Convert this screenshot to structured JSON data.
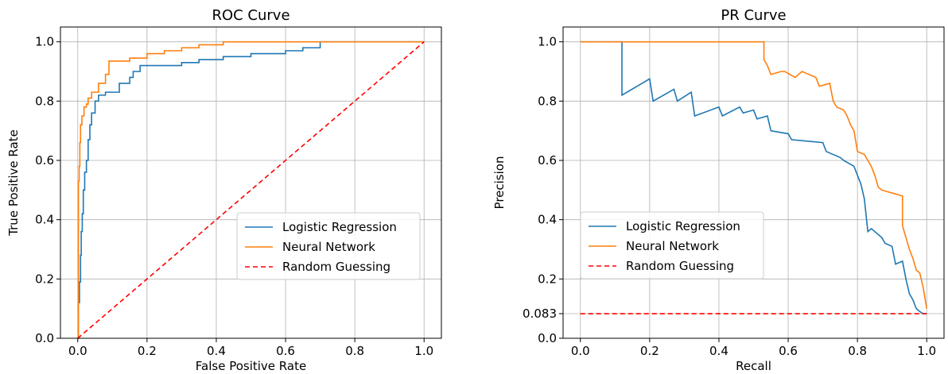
{
  "colors": {
    "lr": "#1f77b4",
    "nn": "#ff7f0e",
    "random": "#ff0000"
  },
  "chart_data": [
    {
      "type": "line",
      "title": "ROC Curve",
      "xlabel": "False Positive Rate",
      "ylabel": "True Positive Rate",
      "xlim": [
        -0.05,
        1.05
      ],
      "ylim": [
        0.0,
        1.05
      ],
      "xticks": [
        "0.0",
        "0.2",
        "0.4",
        "0.6",
        "0.8",
        "1.0"
      ],
      "yticks": [
        "0.0",
        "0.2",
        "0.4",
        "0.6",
        "0.8",
        "1.0"
      ],
      "grid": true,
      "legend_position": "lower-right",
      "series": [
        {
          "name": "Logistic Regression",
          "color_key": "lr",
          "step": true,
          "x": [
            0,
            0.002,
            0.005,
            0.008,
            0.01,
            0.013,
            0.016,
            0.02,
            0.025,
            0.03,
            0.035,
            0.04,
            0.05,
            0.06,
            0.08,
            0.12,
            0.15,
            0.16,
            0.18,
            0.2,
            0.3,
            0.35,
            0.42,
            0.5,
            0.6,
            0.65,
            0.7,
            1.0
          ],
          "y": [
            0,
            0.12,
            0.19,
            0.28,
            0.36,
            0.42,
            0.5,
            0.56,
            0.6,
            0.67,
            0.72,
            0.76,
            0.8,
            0.82,
            0.83,
            0.86,
            0.88,
            0.9,
            0.92,
            0.92,
            0.93,
            0.94,
            0.95,
            0.96,
            0.97,
            0.98,
            1.0,
            1.0
          ]
        },
        {
          "name": "Neural Network",
          "color_key": "nn",
          "step": true,
          "x": [
            0,
            0.002,
            0.004,
            0.006,
            0.008,
            0.012,
            0.018,
            0.025,
            0.03,
            0.04,
            0.06,
            0.08,
            0.09,
            0.15,
            0.2,
            0.25,
            0.3,
            0.35,
            0.42,
            1.0
          ],
          "y": [
            0,
            0.53,
            0.58,
            0.66,
            0.72,
            0.75,
            0.78,
            0.79,
            0.81,
            0.83,
            0.86,
            0.89,
            0.935,
            0.945,
            0.96,
            0.97,
            0.98,
            0.99,
            1.0,
            1.0
          ]
        },
        {
          "name": "Random Guessing",
          "color_key": "random",
          "dashed": true,
          "x": [
            0,
            1
          ],
          "y": [
            0,
            1
          ]
        }
      ]
    },
    {
      "type": "line",
      "title": "PR Curve",
      "xlabel": "Recall",
      "ylabel": "Precision",
      "xlim": [
        -0.05,
        1.05
      ],
      "ylim": [
        0.0,
        1.05
      ],
      "xticks": [
        "0.0",
        "0.2",
        "0.4",
        "0.6",
        "0.8",
        "1.0"
      ],
      "yticks": [
        "0.0",
        "0.083",
        "0.2",
        "0.4",
        "0.6",
        "0.8",
        "1.0"
      ],
      "ytick_values": [
        0.0,
        0.083,
        0.2,
        0.4,
        0.6,
        0.8,
        1.0
      ],
      "grid": true,
      "legend_position": "center-left",
      "series": [
        {
          "name": "Logistic Regression",
          "color_key": "lr",
          "step": false,
          "x": [
            0,
            0.12,
            0.12,
            0.2,
            0.21,
            0.27,
            0.28,
            0.32,
            0.33,
            0.4,
            0.41,
            0.46,
            0.47,
            0.5,
            0.51,
            0.54,
            0.55,
            0.6,
            0.61,
            0.7,
            0.71,
            0.75,
            0.76,
            0.79,
            0.8,
            0.81,
            0.82,
            0.83,
            0.84,
            0.87,
            0.88,
            0.9,
            0.91,
            0.93,
            0.94,
            0.95,
            0.96,
            0.97,
            0.98,
            0.99,
            1.0
          ],
          "y": [
            1.0,
            1.0,
            0.82,
            0.875,
            0.8,
            0.84,
            0.8,
            0.83,
            0.75,
            0.78,
            0.75,
            0.78,
            0.76,
            0.77,
            0.74,
            0.75,
            0.7,
            0.69,
            0.67,
            0.66,
            0.63,
            0.61,
            0.6,
            0.58,
            0.55,
            0.52,
            0.47,
            0.36,
            0.37,
            0.34,
            0.32,
            0.31,
            0.25,
            0.26,
            0.2,
            0.15,
            0.13,
            0.1,
            0.09,
            0.083,
            0.083
          ]
        },
        {
          "name": "Neural Network",
          "color_key": "nn",
          "step": false,
          "x": [
            0,
            0.53,
            0.53,
            0.54,
            0.55,
            0.58,
            0.59,
            0.62,
            0.64,
            0.68,
            0.69,
            0.72,
            0.73,
            0.74,
            0.76,
            0.77,
            0.78,
            0.79,
            0.8,
            0.82,
            0.83,
            0.84,
            0.85,
            0.86,
            0.87,
            0.9,
            0.93,
            0.93,
            0.95,
            0.96,
            0.97,
            0.98,
            0.99,
            1.0
          ],
          "y": [
            1.0,
            1.0,
            0.94,
            0.92,
            0.89,
            0.9,
            0.9,
            0.88,
            0.9,
            0.88,
            0.85,
            0.86,
            0.8,
            0.78,
            0.77,
            0.75,
            0.72,
            0.7,
            0.63,
            0.62,
            0.6,
            0.58,
            0.55,
            0.51,
            0.5,
            0.49,
            0.48,
            0.38,
            0.3,
            0.27,
            0.23,
            0.22,
            0.17,
            0.1
          ]
        },
        {
          "name": "Random Guessing",
          "color_key": "random",
          "dashed": true,
          "x": [
            0,
            1
          ],
          "y": [
            0.083,
            0.083
          ]
        }
      ]
    }
  ]
}
